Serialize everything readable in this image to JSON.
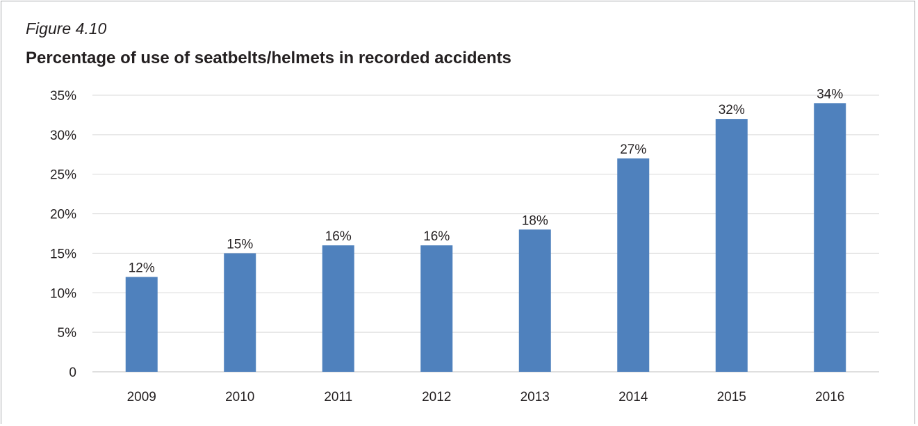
{
  "figure": {
    "label": "Figure 4.10",
    "title": "Percentage of use of seatbelts/helmets in recorded accidents"
  },
  "chart_data": {
    "type": "bar",
    "title": "Percentage of use of seatbelts/helmets in recorded accidents",
    "xlabel": "",
    "ylabel": "",
    "categories": [
      "2009",
      "2010",
      "2011",
      "2012",
      "2013",
      "2014",
      "2015",
      "2016"
    ],
    "values": [
      12,
      15,
      16,
      16,
      18,
      27,
      32,
      34
    ],
    "data_labels": [
      "12%",
      "15%",
      "16%",
      "16%",
      "18%",
      "27%",
      "32%",
      "34%"
    ],
    "y_ticks": [
      0,
      5,
      10,
      15,
      20,
      25,
      30,
      35
    ],
    "y_tick_labels": [
      "0",
      "5%",
      "10%",
      "15%",
      "20%",
      "25%",
      "30%",
      "35%"
    ],
    "ylim": [
      0,
      35
    ],
    "grid": true,
    "legend": "none",
    "bar_color": "#4f81bd",
    "grid_color": "#d9d9d9"
  }
}
